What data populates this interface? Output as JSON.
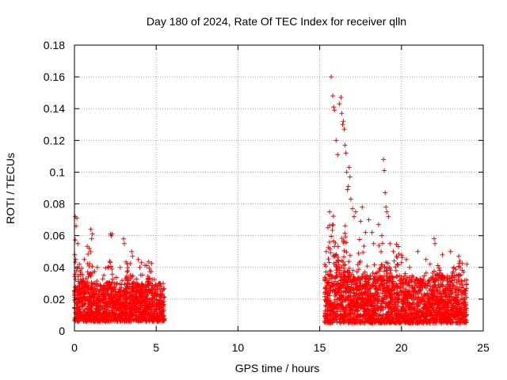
{
  "chart_data": {
    "type": "scatter",
    "title": "Day 180 of 2024, Rate Of TEC Index for receiver qlln",
    "xlabel": "GPS time / hours",
    "ylabel": "ROTI / TECUs",
    "xlim": [
      0,
      25
    ],
    "ylim": [
      0,
      0.18
    ],
    "xticks": [
      0,
      5,
      10,
      15,
      20,
      25
    ],
    "yticks": [
      0,
      0.02,
      0.04,
      0.06,
      0.08,
      0.1,
      0.12,
      0.14,
      0.16,
      0.18
    ],
    "grid": true,
    "legend": "none",
    "marker": "+",
    "colors": {
      "series": "#ff0000",
      "grid": "#a0a0a0",
      "axes": "#000000"
    },
    "series": [
      {
        "name": "ROTI",
        "x": [
          0.05,
          0.1,
          0.15,
          0.2,
          0.02,
          0.08,
          0.3,
          0.35,
          0.6,
          0.9,
          1.0,
          1.05,
          1.1,
          2.2,
          2.25,
          2.3,
          3.0,
          3.05,
          3.5,
          3.55,
          3.9,
          4.0,
          4.1,
          4.5,
          4.6,
          5.2,
          5.3,
          1.4,
          1.8,
          2.8,
          15.4,
          15.5,
          15.6,
          15.7,
          15.8,
          15.85,
          15.9,
          16.0,
          16.1,
          16.2,
          16.3,
          16.35,
          16.4,
          16.45,
          16.5,
          16.55,
          16.6,
          16.65,
          16.7,
          16.75,
          16.8,
          16.85,
          16.9,
          17.0,
          17.1,
          17.2,
          17.5,
          17.6,
          17.8,
          18.0,
          18.2,
          18.3,
          18.6,
          18.8,
          18.9,
          18.95,
          19.0,
          19.05,
          19.1,
          19.2,
          19.3,
          19.5,
          19.7,
          20.0,
          20.3,
          20.5,
          21.0,
          21.5,
          22.0,
          22.05,
          22.5,
          23.0,
          23.2,
          23.5,
          23.8,
          24.0
        ],
        "y": [
          0.072,
          0.066,
          0.071,
          0.055,
          0.048,
          0.045,
          0.042,
          0.038,
          0.045,
          0.052,
          0.064,
          0.058,
          0.061,
          0.061,
          0.06,
          0.061,
          0.058,
          0.055,
          0.05,
          0.047,
          0.045,
          0.04,
          0.043,
          0.032,
          0.03,
          0.03,
          0.028,
          0.04,
          0.035,
          0.04,
          0.05,
          0.065,
          0.075,
          0.16,
          0.148,
          0.141,
          0.139,
          0.12,
          0.111,
          0.143,
          0.147,
          0.137,
          0.13,
          0.132,
          0.127,
          0.117,
          0.112,
          0.1,
          0.089,
          0.091,
          0.103,
          0.097,
          0.083,
          0.077,
          0.072,
          0.075,
          0.069,
          0.078,
          0.062,
          0.07,
          0.062,
          0.055,
          0.067,
          0.06,
          0.108,
          0.101,
          0.087,
          0.078,
          0.075,
          0.072,
          0.055,
          0.05,
          0.047,
          0.043,
          0.045,
          0.04,
          0.05,
          0.045,
          0.058,
          0.055,
          0.048,
          0.05,
          0.04,
          0.047,
          0.037,
          0.042
        ]
      }
    ],
    "dense_bands": [
      {
        "x_range": [
          0.0,
          5.5
        ],
        "y_base_range": [
          0.006,
          0.03
        ],
        "peaks": [
          [
            0.05,
            0.04
          ],
          [
            0.9,
            0.035
          ],
          [
            2.2,
            0.03
          ],
          [
            3.3,
            0.028
          ],
          [
            4.5,
            0.022
          ]
        ]
      },
      {
        "x_range": [
          15.3,
          24.0
        ],
        "y_base_range": [
          0.005,
          0.035
        ],
        "peaks": [
          [
            15.8,
            0.05
          ],
          [
            16.5,
            0.045
          ],
          [
            17.5,
            0.03
          ],
          [
            18.8,
            0.04
          ],
          [
            19.8,
            0.025
          ],
          [
            22.0,
            0.018
          ],
          [
            23.5,
            0.02
          ]
        ]
      }
    ]
  }
}
